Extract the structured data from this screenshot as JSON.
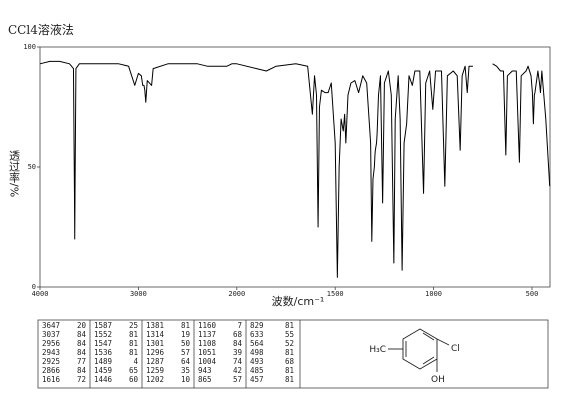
{
  "chart_data": {
    "type": "line",
    "title": "CCl4溶液法",
    "xlabel": "波数/cm⁻¹",
    "ylabel": "透过率/%",
    "x": [
      4000,
      3900,
      3800,
      3700,
      3660,
      3650,
      3647,
      3644,
      3635,
      3600,
      3400,
      3200,
      3100,
      3037,
      3000,
      2970,
      2956,
      2943,
      2935,
      2925,
      2910,
      2866,
      2850,
      2700,
      2500,
      2400,
      2300,
      2200,
      2100,
      2050,
      2000,
      1900,
      1850,
      1800,
      1700,
      1640,
      1616,
      1605,
      1595,
      1587,
      1580,
      1570,
      1552,
      1547,
      1536,
      1520,
      1500,
      1489,
      1480,
      1470,
      1459,
      1452,
      1446,
      1435,
      1420,
      1400,
      1381,
      1360,
      1340,
      1320,
      1314,
      1308,
      1301,
      1298,
      1296,
      1290,
      1287,
      1280,
      1270,
      1259,
      1250,
      1230,
      1215,
      1202,
      1195,
      1180,
      1170,
      1160,
      1150,
      1137,
      1125,
      1108,
      1095,
      1070,
      1051,
      1040,
      1020,
      1004,
      990,
      960,
      943,
      930,
      900,
      880,
      865,
      855,
      840,
      829,
      820,
      800,
      750,
      700,
      680,
      660,
      645,
      633,
      625,
      600,
      580,
      564,
      555,
      530,
      520,
      505,
      498,
      493,
      488,
      485,
      470,
      462,
      457,
      450,
      430,
      410
    ],
    "series": [
      {
        "color": "#000000",
        "values": [
          93,
          94,
          94,
          93,
          91,
          40,
          20,
          40,
          91,
          93,
          93,
          93,
          92,
          84,
          89,
          88,
          84,
          84,
          82,
          77,
          86,
          84,
          91,
          93,
          93,
          93,
          92,
          92,
          92,
          93,
          93,
          91,
          90,
          92,
          93,
          92,
          72,
          88,
          80,
          25,
          75,
          82,
          81,
          81,
          81,
          85,
          60,
          4,
          50,
          70,
          65,
          72,
          60,
          80,
          85,
          86,
          81,
          88,
          85,
          60,
          19,
          45,
          50,
          55,
          57,
          60,
          64,
          80,
          88,
          35,
          85,
          90,
          80,
          10,
          70,
          88,
          70,
          7,
          60,
          68,
          88,
          84,
          90,
          90,
          39,
          85,
          90,
          74,
          90,
          90,
          42,
          88,
          90,
          88,
          57,
          88,
          92,
          81,
          92,
          92,
          null,
          93,
          92,
          90,
          90,
          55,
          88,
          90,
          90,
          52,
          88,
          90,
          92,
          88,
          81,
          68,
          80,
          81,
          90,
          85,
          81,
          90,
          70,
          42
        ]
      }
    ],
    "xlim": [
      4000,
      410
    ],
    "ylim": [
      0,
      100
    ],
    "xticks": [
      4000,
      3000,
      2000,
      1500,
      1000,
      500
    ],
    "yticks": [
      0,
      50,
      100
    ]
  },
  "table": {
    "columns": [
      [
        [
          3647,
          20
        ],
        [
          3037,
          84
        ],
        [
          2956,
          84
        ],
        [
          2943,
          84
        ],
        [
          2925,
          77
        ],
        [
          2866,
          84
        ],
        [
          1616,
          72
        ]
      ],
      [
        [
          1587,
          25
        ],
        [
          1552,
          81
        ],
        [
          1547,
          81
        ],
        [
          1536,
          81
        ],
        [
          1489,
          4
        ],
        [
          1459,
          65
        ],
        [
          1446,
          60
        ]
      ],
      [
        [
          1381,
          81
        ],
        [
          1314,
          19
        ],
        [
          1301,
          50
        ],
        [
          1296,
          57
        ],
        [
          1287,
          64
        ],
        [
          1259,
          35
        ],
        [
          1202,
          10
        ]
      ],
      [
        [
          1160,
          7
        ],
        [
          1137,
          68
        ],
        [
          1108,
          84
        ],
        [
          1051,
          39
        ],
        [
          1004,
          74
        ],
        [
          943,
          42
        ],
        [
          865,
          57
        ]
      ],
      [
        [
          829,
          81
        ],
        [
          633,
          55
        ],
        [
          564,
          52
        ],
        [
          498,
          81
        ],
        [
          493,
          68
        ],
        [
          485,
          81
        ],
        [
          457,
          81
        ]
      ]
    ]
  },
  "structure": {
    "methyl": "H₃C",
    "chloro": "Cl",
    "hydroxy": "OH"
  }
}
